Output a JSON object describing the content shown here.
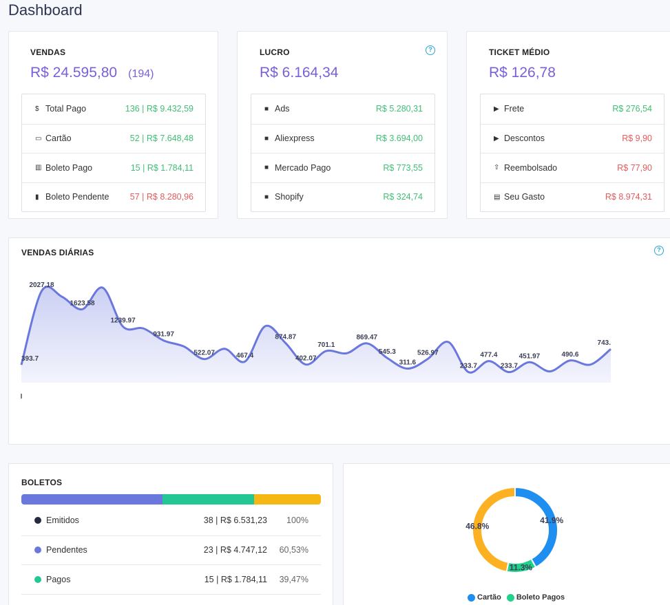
{
  "page": {
    "title": "Dashboard"
  },
  "vendas": {
    "label": "VENDAS",
    "total": "R$ 24.595,80",
    "count": "(194)",
    "rows": [
      {
        "icon": "dollar-icon",
        "glyph": "$",
        "label": "Total Pago",
        "value": "136 | R$ 9.432,59",
        "status": "green"
      },
      {
        "icon": "credit-card-icon",
        "glyph": "▭",
        "label": "Cartão",
        "value": "52 | R$ 7.648,48",
        "status": "green"
      },
      {
        "icon": "barcode-icon",
        "glyph": "▥",
        "label": "Boleto Pago",
        "value": "15 | R$ 1.784,11",
        "status": "green"
      },
      {
        "icon": "trash-icon",
        "glyph": "▮",
        "label": "Boleto Pendente",
        "value": "57 | R$ 8.280,96",
        "status": "red"
      }
    ]
  },
  "lucro": {
    "label": "LUCRO",
    "help_glyph": "?",
    "total": "R$ 6.164,34",
    "rows": [
      {
        "icon": "facebook-icon",
        "glyph": "■",
        "label": "Ads",
        "value": "R$ 5.280,31",
        "status": "green"
      },
      {
        "icon": "aliexpress-icon",
        "glyph": "■",
        "label": "Aliexpress",
        "value": "R$ 3.694,00",
        "status": "green"
      },
      {
        "icon": "mercado-pago-icon",
        "glyph": "■",
        "label": "Mercado Pago",
        "value": "R$ 773,55",
        "status": "green"
      },
      {
        "icon": "shopify-icon",
        "glyph": "■",
        "label": "Shopify",
        "value": "R$ 324,74",
        "status": "green"
      }
    ]
  },
  "ticket": {
    "label": "TICKET MÉDIO",
    "total": "R$ 126,78",
    "rows": [
      {
        "icon": "truck-icon",
        "glyph": "▶",
        "label": "Frete",
        "value": "R$ 276,54",
        "status": "green"
      },
      {
        "icon": "tag-icon",
        "glyph": "▶",
        "label": "Descontos",
        "value": "R$ 9,90",
        "status": "red"
      },
      {
        "icon": "refund-icon",
        "glyph": "⇧",
        "label": "Reembolsado",
        "value": "R$ 77,90",
        "status": "red"
      },
      {
        "icon": "money-icon",
        "glyph": "▤",
        "label": "Seu Gasto",
        "value": "R$ 8.974,31",
        "status": "red"
      }
    ]
  },
  "daily": {
    "label": "VENDAS DIÁRIAS",
    "help_glyph": "?"
  },
  "chart_data": {
    "type": "area",
    "title": "VENDAS DIÁRIAS",
    "color": "#6a78de",
    "values": [
      393.7,
      2027.18,
      1900,
      1623.58,
      2100,
      1239.97,
      1200,
      931.97,
      800,
      522.07,
      750,
      467.4,
      1250,
      874.87,
      402.07,
      701.1,
      650,
      869.47,
      545.3,
      311.6,
      526.97,
      900,
      233.7,
      477.4,
      233.7,
      451.97,
      250,
      490.6,
      400,
      743
    ],
    "labels": [
      "393.7",
      "2027.18",
      "",
      "1623.58",
      "",
      "1239.97",
      "",
      "931.97",
      "",
      "522.07",
      "",
      "467.4",
      "",
      "874.87",
      "402.07",
      "701.1",
      "",
      "869.47",
      "545.3",
      "311.6",
      "526.97",
      "",
      "233.7",
      "477.4",
      "233.7",
      "451.97",
      "",
      "490.6",
      "",
      "743."
    ]
  },
  "boletos": {
    "label": "BOLETOS",
    "bar": [
      {
        "fraction": 0.4717,
        "color": "#6a78de"
      },
      {
        "fraction": 0.3057,
        "color": "#22c793"
      },
      {
        "fraction": 0.2226,
        "color": "#f5b714"
      }
    ],
    "rows": [
      {
        "label": "Emitidos",
        "value": "38 | R$ 6.531,23",
        "percent": "100%",
        "color": "#262a40"
      },
      {
        "label": "Pendentes",
        "value": "23 | R$ 4.747,12",
        "percent": "60,53%",
        "color": "#6a78de"
      },
      {
        "label": "Pagos",
        "value": "15 | R$ 1.784,11",
        "percent": "39,47%",
        "color": "#22c793"
      },
      {
        "label": "",
        "value": "",
        "percent": "",
        "color": "#f5b714"
      }
    ]
  },
  "donut": {
    "slices": [
      {
        "name": "Cartão",
        "percent": 41.9,
        "label": "41.9%",
        "color": "#1f8ef1"
      },
      {
        "name": "Boleto Pagos",
        "percent": 11.3,
        "label": "11.3%",
        "color": "#22d18b"
      },
      {
        "name": "",
        "percent": 46.8,
        "label": "46.8%",
        "color": "#fbb121"
      }
    ],
    "legend": [
      "Cartão",
      "Boleto Pagos"
    ]
  }
}
